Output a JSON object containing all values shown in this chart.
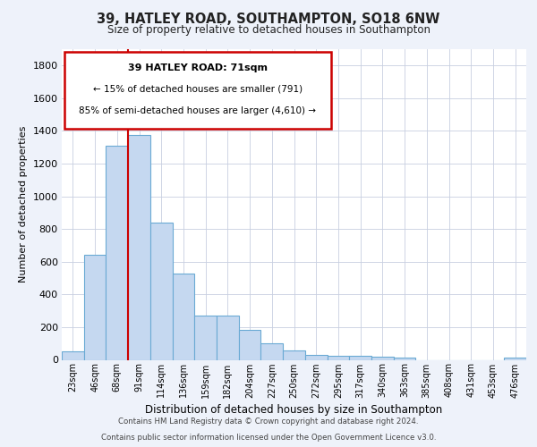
{
  "title1": "39, HATLEY ROAD, SOUTHAMPTON, SO18 6NW",
  "title2": "Size of property relative to detached houses in Southampton",
  "xlabel": "Distribution of detached houses by size in Southampton",
  "ylabel": "Number of detached properties",
  "categories": [
    "23sqm",
    "46sqm",
    "68sqm",
    "91sqm",
    "114sqm",
    "136sqm",
    "159sqm",
    "182sqm",
    "204sqm",
    "227sqm",
    "250sqm",
    "272sqm",
    "295sqm",
    "317sqm",
    "340sqm",
    "363sqm",
    "385sqm",
    "408sqm",
    "431sqm",
    "453sqm",
    "476sqm"
  ],
  "values": [
    50,
    640,
    1310,
    1375,
    840,
    525,
    270,
    270,
    185,
    100,
    60,
    30,
    25,
    25,
    20,
    15,
    0,
    0,
    0,
    0,
    15
  ],
  "bar_color": "#c5d8f0",
  "bar_edge_color": "#6aaad4",
  "vline_x_index": 3,
  "vline_color": "#cc0000",
  "annotation_line1": "39 HATLEY ROAD: 71sqm",
  "annotation_line2": "← 15% of detached houses are smaller (791)",
  "annotation_line3": "85% of semi-detached houses are larger (4,610) →",
  "annotation_box_color": "#ffffff",
  "annotation_box_edge": "#cc0000",
  "ylim": [
    0,
    1900
  ],
  "yticks": [
    0,
    200,
    400,
    600,
    800,
    1000,
    1200,
    1400,
    1600,
    1800
  ],
  "footer1": "Contains HM Land Registry data © Crown copyright and database right 2024.",
  "footer2": "Contains public sector information licensed under the Open Government Licence v3.0.",
  "bg_color": "#eef2fa",
  "plot_bg_color": "#ffffff",
  "grid_color": "#c8cfe0"
}
